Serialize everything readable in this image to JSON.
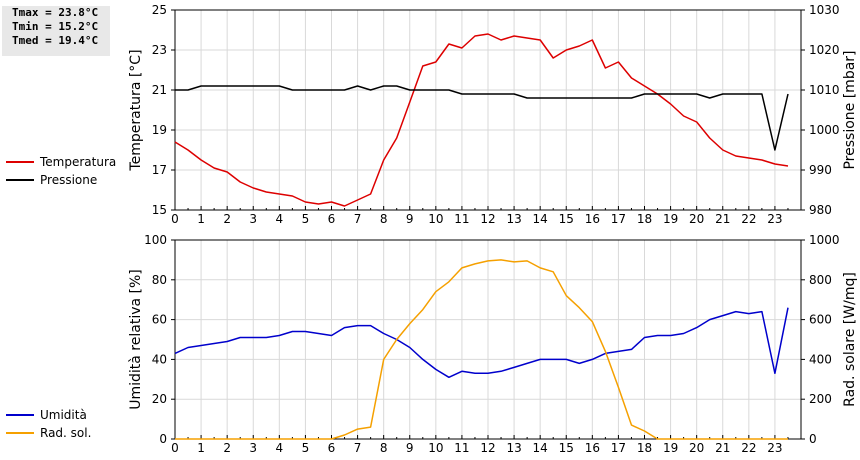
{
  "stats": [
    "Tmax = 23.8°C",
    "Tmin = 15.2°C",
    "Tmed = 19.4°C"
  ],
  "legend_top": [
    {
      "label": "Temperatura",
      "color": "#dd0000"
    },
    {
      "label": "Pressione",
      "color": "#000000"
    }
  ],
  "legend_bottom": [
    {
      "label": "Umidità",
      "color": "#0000cc"
    },
    {
      "label": "Rad. sol.",
      "color": "#f5a000"
    }
  ],
  "chart_data": [
    {
      "type": "line",
      "ylabel": "Temperatura [°C]",
      "y2label": "Pressione [mbar]",
      "xlim": [
        0,
        24
      ],
      "ylim": [
        15,
        25
      ],
      "y2lim": [
        980,
        1030
      ],
      "yticks": [
        "15",
        "17",
        "19",
        "21",
        "23",
        "25"
      ],
      "y2ticks": [
        "980",
        "990",
        "1000",
        "1010",
        "1020",
        "1030"
      ],
      "xticks": [
        "0",
        "1",
        "2",
        "3",
        "4",
        "5",
        "6",
        "7",
        "8",
        "9",
        "10",
        "11",
        "12",
        "13",
        "14",
        "15",
        "16",
        "17",
        "18",
        "19",
        "20",
        "21",
        "22",
        "23"
      ],
      "grid": true,
      "series": [
        {
          "name": "Temperatura",
          "axis": "left",
          "color": "#dd0000",
          "x": [
            0,
            0.5,
            1,
            1.5,
            2,
            2.5,
            3,
            3.5,
            4,
            4.5,
            5,
            5.5,
            6,
            6.5,
            7,
            7.5,
            8,
            8.5,
            9,
            9.5,
            10,
            10.5,
            11,
            11.5,
            12,
            12.5,
            13,
            13.5,
            14,
            14.5,
            15,
            15.5,
            16,
            16.5,
            17,
            17.5,
            18,
            18.5,
            19,
            19.5,
            20,
            20.5,
            21,
            21.5,
            22,
            22.5,
            23,
            23.5
          ],
          "values": [
            18.4,
            18.0,
            17.5,
            17.1,
            16.9,
            16.4,
            16.1,
            15.9,
            15.8,
            15.7,
            15.4,
            15.3,
            15.4,
            15.2,
            15.5,
            15.8,
            17.5,
            18.6,
            20.4,
            22.2,
            22.4,
            23.3,
            23.1,
            23.7,
            23.8,
            23.5,
            23.7,
            23.6,
            23.5,
            22.6,
            23.0,
            23.2,
            23.5,
            22.1,
            22.4,
            21.6,
            21.2,
            20.8,
            20.3,
            19.7,
            19.4,
            18.6,
            18.0,
            17.7,
            17.6,
            17.5,
            17.3,
            17.2
          ]
        },
        {
          "name": "Pressione",
          "axis": "right",
          "color": "#000000",
          "x": [
            0,
            0.5,
            1,
            1.5,
            2,
            2.5,
            3,
            3.5,
            4,
            4.5,
            5,
            5.5,
            6,
            6.5,
            7,
            7.5,
            8,
            8.5,
            9,
            9.5,
            10,
            10.5,
            11,
            11.5,
            12,
            12.5,
            13,
            13.5,
            14,
            14.5,
            15,
            15.5,
            16,
            16.5,
            17,
            17.5,
            18,
            18.5,
            19,
            19.5,
            20,
            20.5,
            21,
            21.5,
            22,
            22.5,
            23,
            23.5
          ],
          "values": [
            1010,
            1010,
            1011,
            1011,
            1011,
            1011,
            1011,
            1011,
            1011,
            1010,
            1010,
            1010,
            1010,
            1010,
            1011,
            1010,
            1011,
            1011,
            1010,
            1010,
            1010,
            1010,
            1009,
            1009,
            1009,
            1009,
            1009,
            1008,
            1008,
            1008,
            1008,
            1008,
            1008,
            1008,
            1008,
            1008,
            1009,
            1009,
            1009,
            1009,
            1009,
            1008,
            1009,
            1009,
            1009,
            1009,
            995,
            1009
          ]
        }
      ]
    },
    {
      "type": "line",
      "ylabel": "Umidità relativa [%]",
      "y2label": "Rad. solare [W/mq]",
      "xlim": [
        0,
        24
      ],
      "ylim": [
        0,
        100
      ],
      "y2lim": [
        0,
        1000
      ],
      "yticks": [
        "0",
        "20",
        "40",
        "60",
        "80",
        "100"
      ],
      "y2ticks": [
        "0",
        "200",
        "400",
        "600",
        "800",
        "1000"
      ],
      "xticks": [
        "0",
        "1",
        "2",
        "3",
        "4",
        "5",
        "6",
        "7",
        "8",
        "9",
        "10",
        "11",
        "12",
        "13",
        "14",
        "15",
        "16",
        "17",
        "18",
        "19",
        "20",
        "21",
        "22",
        "23"
      ],
      "grid": true,
      "series": [
        {
          "name": "Umidità",
          "axis": "left",
          "color": "#0000cc",
          "x": [
            0,
            0.5,
            1,
            1.5,
            2,
            2.5,
            3,
            3.5,
            4,
            4.5,
            5,
            5.5,
            6,
            6.5,
            7,
            7.5,
            8,
            8.5,
            9,
            9.5,
            10,
            10.5,
            11,
            11.5,
            12,
            12.5,
            13,
            13.5,
            14,
            14.5,
            15,
            15.5,
            16,
            16.5,
            17,
            17.5,
            18,
            18.5,
            19,
            19.5,
            20,
            20.5,
            21,
            21.5,
            22,
            22.5,
            23,
            23.5
          ],
          "values": [
            43,
            46,
            47,
            48,
            49,
            51,
            51,
            51,
            52,
            54,
            54,
            53,
            52,
            56,
            57,
            57,
            53,
            50,
            46,
            40,
            35,
            31,
            34,
            33,
            33,
            34,
            36,
            38,
            40,
            40,
            40,
            38,
            40,
            43,
            44,
            45,
            51,
            52,
            52,
            53,
            56,
            60,
            62,
            64,
            63,
            64,
            33,
            66
          ]
        },
        {
          "name": "Rad. sol.",
          "axis": "right",
          "color": "#f5a000",
          "x": [
            0,
            1,
            2,
            3,
            4,
            5,
            6,
            6.5,
            7,
            7.5,
            8,
            8.5,
            9,
            9.5,
            10,
            10.5,
            11,
            11.5,
            12,
            12.5,
            13,
            13.5,
            14,
            14.5,
            15,
            15.5,
            16,
            16.5,
            17,
            17.5,
            18,
            18.5,
            19,
            20,
            21,
            22,
            23,
            23.5
          ],
          "values": [
            0,
            0,
            0,
            0,
            0,
            0,
            0,
            20,
            50,
            60,
            400,
            500,
            580,
            650,
            740,
            790,
            860,
            880,
            895,
            900,
            890,
            895,
            860,
            840,
            720,
            660,
            590,
            440,
            260,
            70,
            40,
            0,
            0,
            0,
            0,
            0,
            0,
            0
          ]
        }
      ]
    }
  ]
}
